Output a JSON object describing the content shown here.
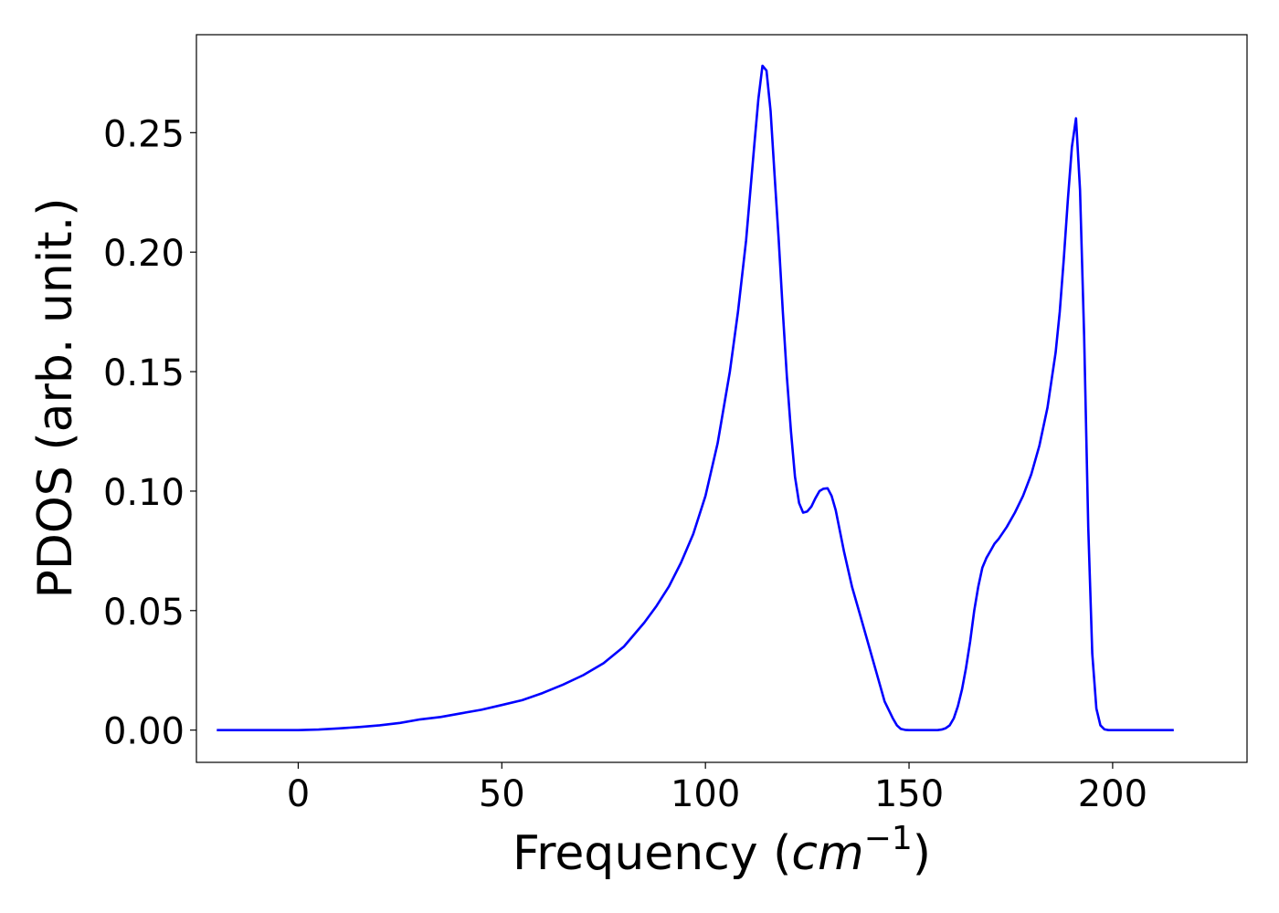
{
  "chart_data": {
    "type": "line",
    "title": "",
    "xlabel": "Frequency (",
    "xlabel_math": "cm",
    "xlabel_exp": "−1",
    "xlabel_close": ")",
    "ylabel": "PDOS (arb. unit.)",
    "xlim": [
      -25,
      233
    ],
    "ylim": [
      -0.0135,
      0.291
    ],
    "grid": false,
    "legend": "none",
    "x_ticks": [
      0,
      50,
      100,
      150,
      200
    ],
    "x_tick_labels": [
      "0",
      "50",
      "100",
      "150",
      "200"
    ],
    "y_ticks": [
      0.0,
      0.05,
      0.1,
      0.15,
      0.2,
      0.25
    ],
    "y_tick_labels": [
      "0.00",
      "0.05",
      "0.10",
      "0.15",
      "0.20",
      "0.25"
    ],
    "series": [
      {
        "color": "#0000ff",
        "x": [
          -20,
          -10,
          0,
          5,
          10,
          15,
          20,
          25,
          30,
          35,
          40,
          45,
          50,
          55,
          60,
          65,
          70,
          75,
          80,
          85,
          88,
          91,
          94,
          97,
          100,
          103,
          106,
          108,
          110,
          111,
          112,
          113,
          114,
          115,
          116,
          117,
          118,
          119,
          120,
          121,
          122,
          123,
          124,
          125,
          126,
          127,
          128,
          129,
          130,
          131,
          132,
          134,
          136,
          138,
          140,
          142,
          144,
          146,
          147,
          148,
          149,
          150,
          152,
          155,
          157,
          158,
          159,
          160,
          161,
          162,
          163,
          164,
          165,
          166,
          167,
          168,
          169,
          170,
          171,
          172,
          174,
          176,
          178,
          180,
          182,
          184,
          186,
          187,
          188,
          189,
          190,
          191,
          192,
          193,
          194,
          195,
          196,
          197,
          198,
          199,
          200,
          201,
          202,
          205,
          210,
          215
        ],
        "y": [
          0.0,
          0.0,
          0.0,
          0.0002,
          0.0007,
          0.0013,
          0.002,
          0.003,
          0.0045,
          0.0055,
          0.007,
          0.0085,
          0.0105,
          0.0125,
          0.0155,
          0.019,
          0.023,
          0.028,
          0.035,
          0.045,
          0.052,
          0.06,
          0.07,
          0.082,
          0.098,
          0.12,
          0.15,
          0.175,
          0.205,
          0.225,
          0.245,
          0.264,
          0.278,
          0.276,
          0.259,
          0.232,
          0.205,
          0.175,
          0.148,
          0.125,
          0.106,
          0.095,
          0.091,
          0.0915,
          0.0935,
          0.097,
          0.1,
          0.101,
          0.1012,
          0.098,
          0.092,
          0.075,
          0.06,
          0.048,
          0.036,
          0.024,
          0.012,
          0.005,
          0.002,
          0.0005,
          0.0001,
          0.0,
          0.0,
          0.0,
          0.0,
          0.0002,
          0.0008,
          0.002,
          0.005,
          0.01,
          0.017,
          0.026,
          0.037,
          0.05,
          0.06,
          0.068,
          0.072,
          0.075,
          0.078,
          0.08,
          0.085,
          0.091,
          0.098,
          0.107,
          0.119,
          0.135,
          0.158,
          0.175,
          0.197,
          0.222,
          0.244,
          0.256,
          0.226,
          0.165,
          0.085,
          0.032,
          0.009,
          0.002,
          0.0003,
          0.0,
          0.0,
          0.0,
          0.0,
          0.0,
          0.0,
          0.0
        ]
      }
    ]
  }
}
